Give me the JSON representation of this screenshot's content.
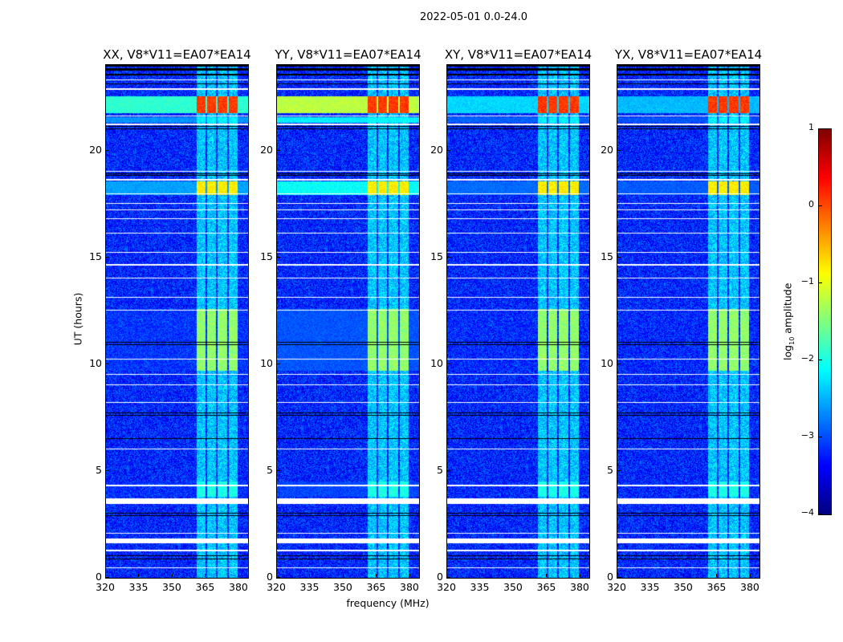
{
  "chart_data": {
    "type": "heatmap",
    "title": "2022-05-01 0.0-24.0",
    "xlabel": "frequency (MHz)",
    "ylabel": "UT (hours)",
    "xlim": [
      320,
      384
    ],
    "ylim": [
      0,
      24
    ],
    "xticks": [
      "320",
      "335",
      "350",
      "365",
      "380"
    ],
    "yticks": [
      "0",
      "5",
      "10",
      "15",
      "20"
    ],
    "colormap": "jet",
    "colorbar": {
      "label_main": "log",
      "label_sub": "10",
      "label_rest": " amplitude",
      "range": [
        -4,
        1
      ],
      "ticks": [
        "1",
        "0",
        "−1",
        "−2",
        "−3",
        "−4"
      ],
      "tick_values": [
        1,
        0,
        -1,
        -2,
        -3,
        -4
      ]
    },
    "panels": [
      {
        "title": "XX, V8*V11=EA07*EA14",
        "broadband_gain": 0.75
      },
      {
        "title": "YY, V8*V11=EA07*EA14",
        "broadband_gain": 1.0
      },
      {
        "title": "XY, V8*V11=EA07*EA14",
        "broadband_gain": 0.6
      },
      {
        "title": "YX, V8*V11=EA07*EA14",
        "broadband_gain": 0.55
      }
    ],
    "background_level": -3.2,
    "rfi_subbands_mhz": [
      [
        360.8,
        365.0
      ],
      [
        365.7,
        369.7
      ],
      [
        370.4,
        374.7
      ],
      [
        375.4,
        379.4
      ]
    ],
    "rfi_subband_level": -2.4,
    "events": [
      {
        "hours": [
          21.75,
          22.55
        ],
        "subband_level": 0.1,
        "broadband_level": -1.2
      },
      {
        "hours": [
          17.9,
          18.55
        ],
        "subband_level": -0.8,
        "broadband_level": -2.1
      },
      {
        "hours": [
          9.7,
          12.6
        ],
        "subband_level": -1.4,
        "broadband_level": -3.0
      },
      {
        "hours": [
          3.8,
          4.5
        ],
        "subband_level": -2.0,
        "broadband_level": -3.1
      },
      {
        "hours": [
          21.3,
          21.55
        ],
        "subband_level": -2.2,
        "broadband_level": -2.2
      }
    ],
    "flagged_white_hours": [
      [
        0.45,
        0.5
      ],
      [
        1.25,
        1.3
      ],
      [
        1.6,
        1.85
      ],
      [
        2.05,
        2.1
      ],
      [
        3.45,
        3.7
      ],
      [
        4.3,
        4.34
      ],
      [
        6.0,
        6.04
      ],
      [
        8.2,
        8.24
      ],
      [
        9.0,
        9.04
      ],
      [
        9.5,
        9.54
      ],
      [
        10.2,
        10.24
      ],
      [
        12.5,
        12.54
      ],
      [
        13.1,
        13.14
      ],
      [
        14.0,
        14.04
      ],
      [
        14.6,
        14.7
      ],
      [
        15.2,
        15.24
      ],
      [
        16.1,
        16.14
      ],
      [
        16.8,
        16.84
      ],
      [
        17.2,
        17.24
      ],
      [
        17.5,
        17.54
      ],
      [
        17.95,
        18.0
      ],
      [
        18.6,
        18.65
      ],
      [
        19.0,
        19.04
      ],
      [
        21.2,
        21.25
      ],
      [
        21.6,
        21.65
      ],
      [
        22.85,
        22.9
      ],
      [
        23.3,
        23.34
      ]
    ],
    "flagged_black_hours": [
      [
        0.85,
        0.9
      ],
      [
        1.0,
        1.04
      ],
      [
        2.9,
        2.94
      ],
      [
        3.0,
        3.04
      ],
      [
        6.5,
        6.54
      ],
      [
        7.6,
        7.64
      ],
      [
        7.7,
        7.74
      ],
      [
        10.9,
        10.94
      ],
      [
        11.0,
        11.04
      ],
      [
        18.8,
        18.85
      ],
      [
        18.9,
        18.94
      ],
      [
        21.0,
        21.04
      ],
      [
        21.1,
        21.14
      ],
      [
        23.1,
        23.14
      ],
      [
        23.5,
        23.6
      ],
      [
        23.75,
        23.85
      ],
      [
        23.92,
        24.0
      ]
    ]
  }
}
